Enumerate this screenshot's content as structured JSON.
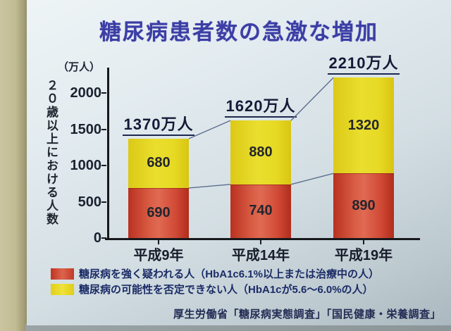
{
  "slide": {
    "title": "糖尿病患者数の急激な増加",
    "title_color": "#3c3ea6",
    "source": "厚生労働省「糖尿病実態調査」「国民健康・栄養調査」"
  },
  "chart_data": {
    "type": "bar",
    "stacked": true,
    "title": "糖尿病患者数の急激な増加",
    "unit_label": "（万人）",
    "ylabel": "２０歳以上における人数",
    "xlabel": "",
    "categories": [
      "平成9年",
      "平成14年",
      "平成19年"
    ],
    "series": [
      {
        "name": "糖尿病を強く疑われる人（HbA1c6.1%以上または治療中の人）",
        "color": "#c7392a",
        "values": [
          690,
          740,
          890
        ]
      },
      {
        "name": "糖尿病の可能性を否定できない人（HbA1cが5.6～6.0%の人）",
        "color": "#e6d71f",
        "values": [
          680,
          880,
          1320
        ]
      }
    ],
    "totals": [
      1370,
      1620,
      2210
    ],
    "total_labels": [
      "1370万人",
      "1620万人",
      "2210万人"
    ],
    "yticks": [
      0,
      500,
      1000,
      1500,
      2000
    ],
    "ylim": [
      0,
      2350
    ],
    "grid": false,
    "legend_position": "bottom-left",
    "connector_lines": "between stacked bar tops and red-segment tops"
  }
}
